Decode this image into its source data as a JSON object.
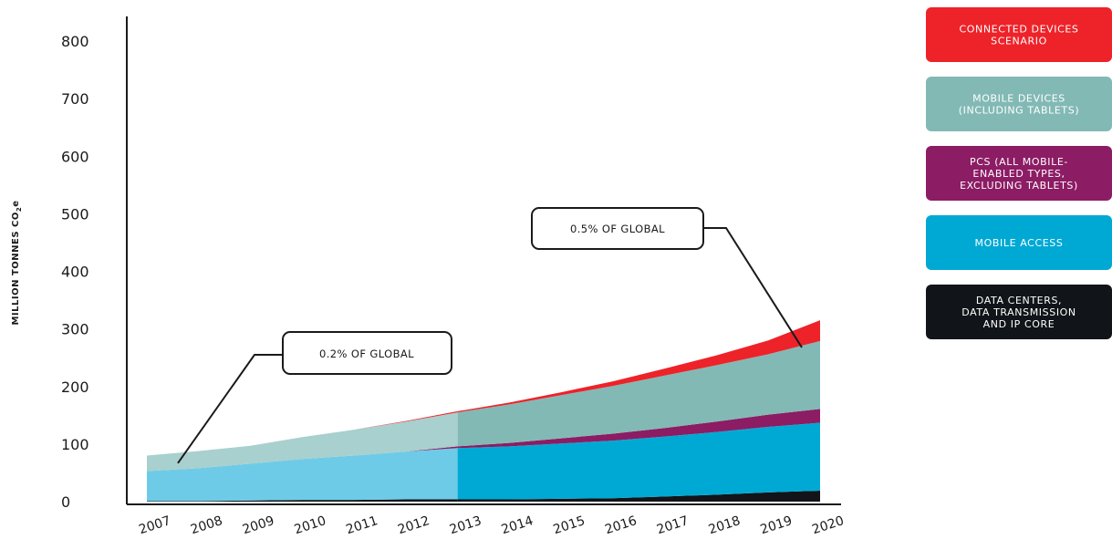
{
  "chart_data": {
    "type": "area",
    "stacked": true,
    "ylabel_main": "MILLION TONNES CO",
    "ylabel_sub": "2",
    "ylabel_suffix": "e",
    "ylim": [
      0,
      800
    ],
    "yticks": [
      0,
      100,
      200,
      300,
      400,
      500,
      600,
      700,
      800
    ],
    "x": [
      2007,
      2008,
      2009,
      2010,
      2011,
      2012,
      2013,
      2014,
      2015,
      2016,
      2017,
      2018,
      2019,
      2020
    ],
    "x_labels": [
      "2007",
      "2008",
      "2009",
      "2010",
      "2011",
      "2012",
      "2013",
      "2014",
      "2015",
      "2016",
      "2017",
      "2018",
      "2019",
      "2020"
    ],
    "historical_until": 2013,
    "series": [
      {
        "name": "DATA CENTERS, DATA TRANSMISSION AND IP CORE",
        "color": "#111418",
        "light_color": "#111418",
        "values": [
          1,
          1,
          2,
          3,
          3,
          4,
          4,
          4,
          5,
          6,
          9,
          12,
          16,
          19
        ]
      },
      {
        "name": "MOBILE ACCESS",
        "color": "#00a9d4",
        "light_color": "#6ecbe7",
        "values": [
          52,
          57,
          64,
          71,
          77,
          83,
          89,
          92,
          96,
          100,
          104,
          109,
          114,
          118
        ]
      },
      {
        "name": "PCS (ALL MOBILE-ENABLED TYPES, EXCLUDING TABLETS)",
        "color": "#8c1c64",
        "light_color": "#8c1c64",
        "values": [
          0,
          0,
          0,
          0,
          0,
          0,
          3,
          6,
          9,
          12,
          15,
          18,
          21,
          24
        ]
      },
      {
        "name": "MOBILE DEVICES (INCLUDING TABLETS)",
        "color": "#82b9b5",
        "light_color": "#a8d0ce",
        "values": [
          27,
          30,
          31,
          38,
          45,
          52,
          59,
          67,
          75,
          83,
          91,
          98,
          105,
          118
        ]
      },
      {
        "name": "CONNECTED DEVICES SCENARIO",
        "color": "#ee2229",
        "light_color": "#ee2229",
        "values": [
          0,
          0,
          0,
          0,
          0,
          1,
          2,
          3,
          5,
          8,
          12,
          17,
          24,
          36
        ]
      }
    ],
    "annotations": [
      {
        "text": "0.2% OF GLOBAL",
        "x": 2007,
        "y": 70
      },
      {
        "text": "0.5% OF GLOBAL",
        "x": 2020,
        "y": 290
      }
    ],
    "legend": [
      {
        "label_lines": [
          "CONNECTED DEVICES",
          "SCENARIO"
        ],
        "color": "#ee2229"
      },
      {
        "label_lines": [
          "MOBILE DEVICES",
          "(INCLUDING TABLETS)"
        ],
        "color": "#82b9b5"
      },
      {
        "label_lines": [
          "PCS (ALL MOBILE-",
          "ENABLED TYPES,",
          "EXCLUDING TABLETS)"
        ],
        "color": "#8c1c64"
      },
      {
        "label_lines": [
          "MOBILE ACCESS"
        ],
        "color": "#00a9d4"
      },
      {
        "label_lines": [
          "DATA CENTERS,",
          "DATA TRANSMISSION",
          "AND IP CORE"
        ],
        "color": "#111418"
      }
    ],
    "legend_placement": "right"
  }
}
